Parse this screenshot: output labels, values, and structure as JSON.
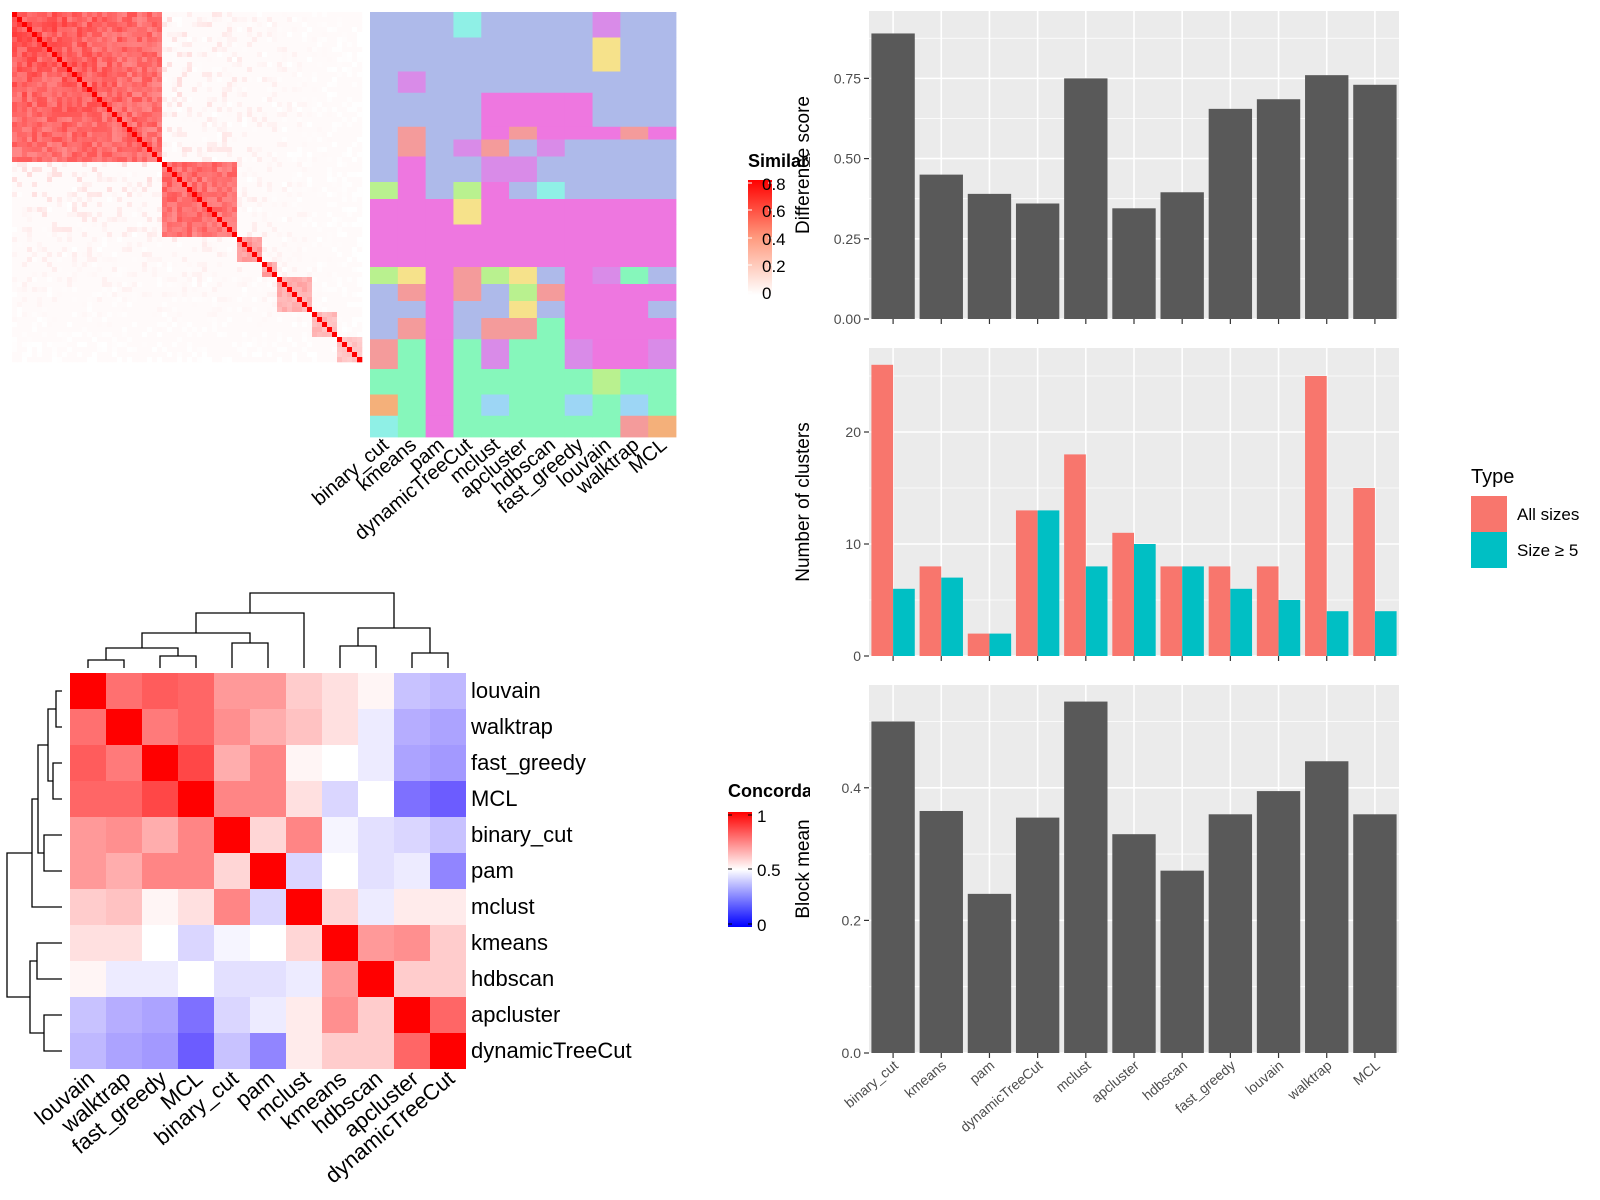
{
  "methods_order": [
    "binary_cut",
    "kmeans",
    "pam",
    "dynamicTreeCut",
    "mclust",
    "apcluster",
    "hdbscan",
    "fast_greedy",
    "louvain",
    "walktrap",
    "MCL"
  ],
  "colors": {
    "bar_dark": "#595959",
    "panel_bg": "#ebebeb",
    "grid": "#ffffff",
    "all_sizes": "#f8766d",
    "size_ge5": "#00bfc4",
    "sim_high": "#ff0000",
    "sim_low": "#ffffff",
    "conc_high": "#ff0000",
    "conc_mid": "#ffffff",
    "conc_low": "#0000ff"
  },
  "similarity_legend": {
    "title": "Similarity",
    "ticks": [
      "0.8",
      "0.6",
      "0.4",
      "0.2",
      "0"
    ]
  },
  "concordance_legend": {
    "title": "Concordance",
    "ticks": [
      "1",
      "0.5",
      "0"
    ]
  },
  "cluster_matrix": {
    "columns": [
      "binary_cut",
      "kmeans",
      "pam",
      "dynamicTreeCut",
      "mclust",
      "apcluster",
      "hdbscan",
      "fast_greedy",
      "louvain",
      "walktrap",
      "MCL"
    ]
  },
  "concordance_heatmap": {
    "labels": [
      "louvain",
      "walktrap",
      "fast_greedy",
      "MCL",
      "binary_cut",
      "pam",
      "mclust",
      "kmeans",
      "hdbscan",
      "apcluster",
      "dynamicTreeCut"
    ],
    "values": [
      [
        1.0,
        0.78,
        0.82,
        0.8,
        0.7,
        0.7,
        0.6,
        0.56,
        0.52,
        0.38,
        0.36
      ],
      [
        0.78,
        1.0,
        0.76,
        0.8,
        0.72,
        0.66,
        0.62,
        0.56,
        0.46,
        0.34,
        0.32
      ],
      [
        0.82,
        0.76,
        1.0,
        0.86,
        0.66,
        0.74,
        0.52,
        0.5,
        0.46,
        0.32,
        0.3
      ],
      [
        0.8,
        0.8,
        0.86,
        1.0,
        0.74,
        0.74,
        0.56,
        0.42,
        0.5,
        0.22,
        0.18
      ],
      [
        0.7,
        0.72,
        0.66,
        0.74,
        1.0,
        0.58,
        0.74,
        0.48,
        0.44,
        0.42,
        0.38
      ],
      [
        0.7,
        0.66,
        0.74,
        0.74,
        0.58,
        1.0,
        0.42,
        0.5,
        0.44,
        0.46,
        0.26
      ],
      [
        0.6,
        0.62,
        0.52,
        0.56,
        0.74,
        0.42,
        1.0,
        0.58,
        0.46,
        0.54,
        0.54
      ],
      [
        0.56,
        0.56,
        0.5,
        0.42,
        0.48,
        0.5,
        0.58,
        1.0,
        0.7,
        0.72,
        0.6
      ],
      [
        0.52,
        0.46,
        0.46,
        0.5,
        0.44,
        0.44,
        0.46,
        0.7,
        1.0,
        0.6,
        0.6
      ],
      [
        0.38,
        0.34,
        0.32,
        0.22,
        0.42,
        0.46,
        0.54,
        0.72,
        0.6,
        1.0,
        0.8
      ],
      [
        0.36,
        0.32,
        0.3,
        0.18,
        0.38,
        0.26,
        0.54,
        0.6,
        0.6,
        0.8,
        1.0
      ]
    ]
  },
  "chart_data": [
    {
      "type": "bar",
      "categories": [
        "binary_cut",
        "kmeans",
        "pam",
        "dynamicTreeCut",
        "mclust",
        "apcluster",
        "hdbscan",
        "fast_greedy",
        "louvain",
        "walktrap",
        "MCL"
      ],
      "values": [
        0.89,
        0.45,
        0.39,
        0.36,
        0.75,
        0.345,
        0.395,
        0.655,
        0.685,
        0.76,
        0.73
      ],
      "ylabel": "Difference score",
      "ylim": [
        0,
        0.96
      ],
      "yticks": [
        "0.00",
        "0.25",
        "0.50",
        "0.75"
      ],
      "grid": true
    },
    {
      "type": "bar",
      "categories": [
        "binary_cut",
        "kmeans",
        "pam",
        "dynamicTreeCut",
        "mclust",
        "apcluster",
        "hdbscan",
        "fast_greedy",
        "louvain",
        "walktrap",
        "MCL"
      ],
      "series": [
        {
          "name": "All sizes",
          "values": [
            26,
            8,
            2,
            13,
            18,
            11,
            8,
            8,
            8,
            25,
            15
          ]
        },
        {
          "name": "Size ≥ 5",
          "values": [
            6,
            7,
            2,
            13,
            8,
            10,
            8,
            6,
            5,
            4,
            4
          ]
        }
      ],
      "ylabel": "Number of clusters",
      "ylim": [
        0,
        27.5
      ],
      "yticks": [
        "0",
        "10",
        "20"
      ],
      "legend_title": "Type",
      "legend_position": "right",
      "grid": true
    },
    {
      "type": "bar",
      "categories": [
        "binary_cut",
        "kmeans",
        "pam",
        "dynamicTreeCut",
        "mclust",
        "apcluster",
        "hdbscan",
        "fast_greedy",
        "louvain",
        "walktrap",
        "MCL"
      ],
      "values": [
        0.5,
        0.365,
        0.24,
        0.355,
        0.53,
        0.33,
        0.275,
        0.36,
        0.395,
        0.44,
        0.36
      ],
      "ylabel": "Block mean",
      "ylim": [
        0,
        0.555
      ],
      "yticks": [
        "0.0",
        "0.2",
        "0.4"
      ],
      "grid": true
    }
  ]
}
